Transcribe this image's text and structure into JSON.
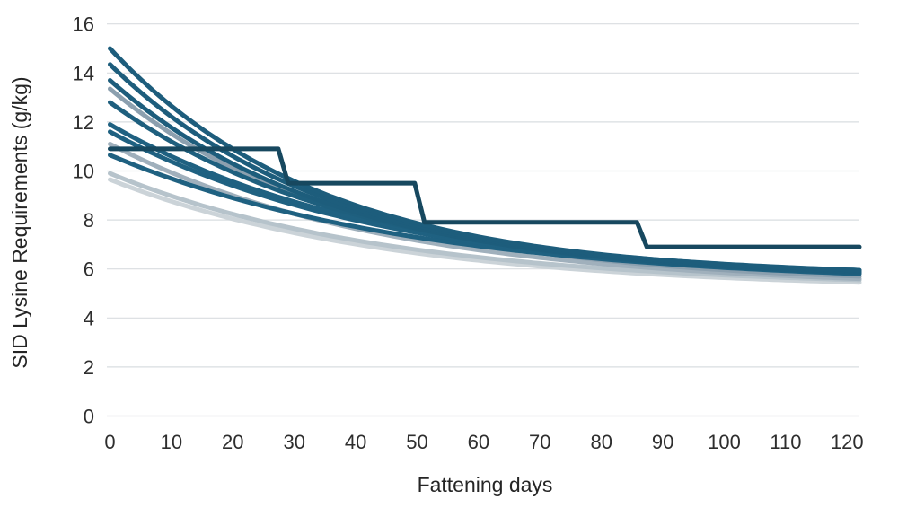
{
  "chart_data": {
    "type": "line",
    "title": "",
    "xlabel": "Fattening days",
    "ylabel": "SID Lysine Requirements (g/kg)",
    "xlim": [
      0,
      122
    ],
    "ylim": [
      0,
      16
    ],
    "x_ticks": [
      0,
      10,
      20,
      30,
      40,
      50,
      60,
      70,
      80,
      90,
      100,
      110,
      120
    ],
    "y_ticks": [
      0,
      2,
      4,
      6,
      8,
      10,
      12,
      14,
      16
    ],
    "grid": "horizontal",
    "gridline_color": "#d9dde0",
    "axis_line_color": "#c4cacf",
    "legend": "none",
    "series": [
      {
        "name": "curve-gray-lightest",
        "type": "smooth",
        "color": "#cbd3d8",
        "line_width": 5,
        "start": 9.65,
        "end": 5.45,
        "k": 0.022
      },
      {
        "name": "curve-gray-light",
        "type": "smooth",
        "color": "#b6c3cb",
        "line_width": 5,
        "start": 9.9,
        "end": 5.55,
        "k": 0.022
      },
      {
        "name": "curve-gray-medium",
        "type": "smooth",
        "color": "#a0b0bc",
        "line_width": 5,
        "start": 11.1,
        "end": 5.6,
        "k": 0.022
      },
      {
        "name": "curve-gray-dark",
        "type": "smooth",
        "color": "#8ca0af",
        "line_width": 5,
        "start": 13.35,
        "end": 5.7,
        "k": 0.026
      },
      {
        "name": "curve-teal-10-65",
        "type": "smooth",
        "color": "#1f6181",
        "line_width": 5,
        "start": 10.65,
        "end": 5.8,
        "k": 0.02
      },
      {
        "name": "curve-teal-11-6",
        "type": "smooth",
        "color": "#1f6181",
        "line_width": 5,
        "start": 11.6,
        "end": 5.85,
        "k": 0.022
      },
      {
        "name": "curve-teal-11-9",
        "type": "smooth",
        "color": "#1f6181",
        "line_width": 5,
        "start": 11.9,
        "end": 5.95,
        "k": 0.023
      },
      {
        "name": "curve-teal-12-8",
        "type": "smooth",
        "color": "#1e5f7e",
        "line_width": 5,
        "start": 12.8,
        "end": 5.9,
        "k": 0.025
      },
      {
        "name": "curve-teal-13-7",
        "type": "smooth",
        "color": "#1d5d7c",
        "line_width": 5,
        "start": 13.7,
        "end": 5.85,
        "k": 0.027
      },
      {
        "name": "curve-teal-14-35",
        "type": "smooth",
        "color": "#1d5d7c",
        "line_width": 5,
        "start": 14.35,
        "end": 5.9,
        "k": 0.028
      },
      {
        "name": "curve-teal-15",
        "type": "smooth",
        "color": "#1d5d7c",
        "line_width": 5,
        "start": 15.0,
        "end": 5.95,
        "k": 0.029
      },
      {
        "name": "stepwise-feeding-line",
        "type": "step",
        "color": "#17485f",
        "line_width": 5,
        "points": [
          [
            0,
            10.9
          ],
          [
            27.4,
            10.9
          ],
          [
            29,
            9.5
          ],
          [
            49.6,
            9.5
          ],
          [
            51.2,
            7.9
          ],
          [
            85.8,
            7.9
          ],
          [
            87.4,
            6.9
          ],
          [
            122,
            6.9
          ]
        ]
      }
    ],
    "smooth_model": "value(day) = A + B*exp(-k*day), with A,B solved so value(0)=start and value(122)=end"
  }
}
